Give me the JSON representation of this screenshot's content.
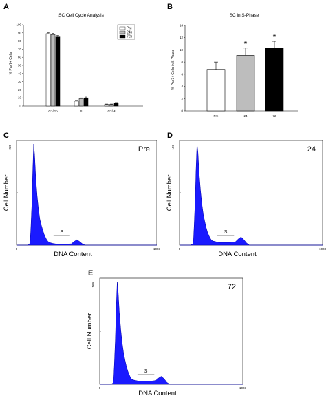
{
  "panels": {
    "A": "A",
    "B": "B",
    "C": "C",
    "D": "D",
    "E": "E"
  },
  "chart_data": [
    {
      "id": "A",
      "type": "bar",
      "title": "SC Cell Cycle Analysis",
      "ylabel": "% Pax7+ Cells",
      "xlabel": "",
      "categories": [
        "G1/Go",
        "S",
        "G2/M"
      ],
      "series": [
        {
          "name": "Pre",
          "values": [
            89,
            6,
            2
          ],
          "errors": [
            1.5,
            1,
            0.5
          ],
          "color": "#ffffff"
        },
        {
          "name": "24h",
          "values": [
            88,
            9,
            2
          ],
          "errors": [
            1.5,
            1,
            0.5
          ],
          "color": "#bdbdbd"
        },
        {
          "name": "72h",
          "values": [
            85,
            10,
            3.5
          ],
          "errors": [
            2,
            1,
            0.8
          ],
          "color": "#000000"
        }
      ],
      "ylim": [
        0,
        100
      ],
      "yticks": [
        0,
        10,
        20,
        30,
        40,
        50,
        60,
        70,
        80,
        90,
        100
      ],
      "legend": "top-right",
      "grid": false
    },
    {
      "id": "B",
      "type": "bar",
      "title": "SC in S-Phase",
      "ylabel": "% Pax7+ Cells in S-Phase",
      "xlabel": "",
      "categories": [
        "Pre",
        "24",
        "72"
      ],
      "values": [
        6.8,
        9.1,
        10.3
      ],
      "errors": [
        1.2,
        1.2,
        1.1
      ],
      "colors": [
        "#ffffff",
        "#bdbdbd",
        "#000000"
      ],
      "significance": [
        "",
        "*",
        "*"
      ],
      "ylim": [
        0,
        14
      ],
      "yticks": [
        0,
        2,
        4,
        6,
        8,
        10,
        12,
        14
      ],
      "grid": false
    },
    {
      "id": "C",
      "type": "area",
      "label": "Pre",
      "xlabel": "DNA Content",
      "ylabel": "Cell Number",
      "xticks": [
        "0",
        "1023"
      ],
      "ymax_label": "225",
      "s_label": "S",
      "x": [
        0,
        80,
        95,
        100,
        105,
        112,
        118,
        125,
        132,
        140,
        150,
        160,
        170,
        180,
        190,
        200,
        210,
        220,
        230,
        240,
        260,
        280,
        300,
        330,
        360,
        400,
        420,
        440,
        460,
        480,
        500,
        600,
        800,
        1023
      ],
      "y": [
        0,
        0,
        2,
        10,
        40,
        90,
        160,
        225,
        200,
        150,
        110,
        80,
        58,
        45,
        35,
        25,
        18,
        12,
        8,
        6,
        4,
        3,
        2,
        2,
        2,
        3,
        8,
        12,
        8,
        3,
        0,
        0,
        0,
        0
      ]
    },
    {
      "id": "D",
      "type": "area",
      "label": "24",
      "xlabel": "DNA Content",
      "ylabel": "Cell Number",
      "xticks": [
        "0",
        "1023"
      ],
      "ymax_label": "150",
      "s_label": "S",
      "x": [
        0,
        80,
        95,
        100,
        105,
        112,
        118,
        125,
        132,
        140,
        150,
        160,
        170,
        180,
        190,
        200,
        210,
        220,
        230,
        240,
        260,
        280,
        300,
        330,
        360,
        400,
        420,
        440,
        460,
        480,
        500,
        600,
        800,
        1023
      ],
      "y": [
        0,
        0,
        2,
        8,
        30,
        65,
        110,
        148,
        135,
        105,
        80,
        60,
        45,
        35,
        26,
        19,
        14,
        10,
        7,
        6,
        5,
        4,
        4,
        4,
        4,
        5,
        9,
        12,
        8,
        3,
        0,
        0,
        0,
        0
      ]
    },
    {
      "id": "E",
      "type": "area",
      "label": "72",
      "xlabel": "DNA Content",
      "ylabel": "Cell Number",
      "xticks": [
        "0",
        "1023"
      ],
      "ymax_label": "169",
      "s_label": "S",
      "x": [
        0,
        80,
        95,
        100,
        105,
        112,
        118,
        125,
        132,
        140,
        150,
        160,
        170,
        180,
        190,
        200,
        210,
        220,
        230,
        240,
        260,
        280,
        300,
        330,
        360,
        400,
        420,
        440,
        460,
        480,
        500,
        600,
        800,
        1023
      ],
      "y": [
        0,
        0,
        2,
        10,
        35,
        75,
        125,
        168,
        150,
        118,
        90,
        68,
        52,
        40,
        30,
        22,
        16,
        11,
        8,
        7,
        6,
        5,
        5,
        5,
        5,
        6,
        10,
        13,
        9,
        3,
        0,
        0,
        0,
        0
      ]
    }
  ]
}
